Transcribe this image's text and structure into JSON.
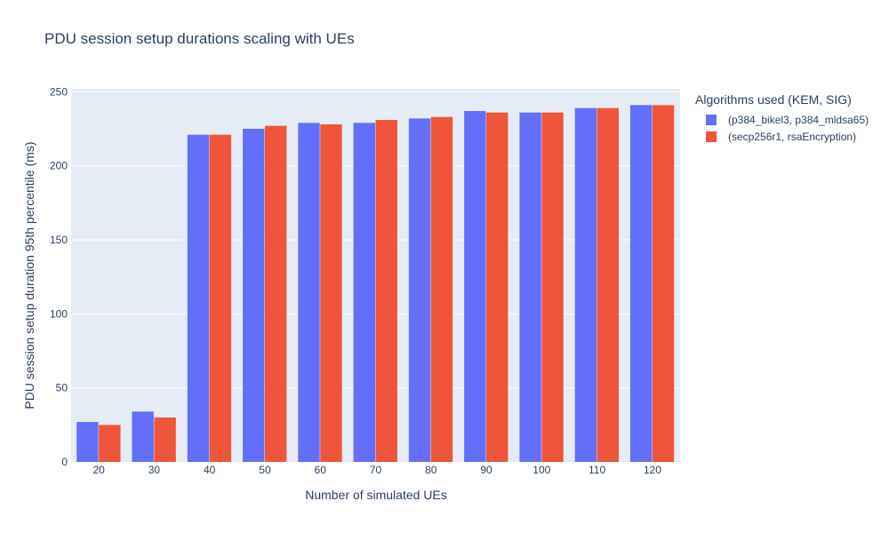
{
  "chart_data": {
    "type": "bar",
    "title": "PDU session setup durations scaling with UEs",
    "xlabel": "Number of simulated UEs",
    "ylabel": "PDU session setup duration 95th percentile (ms)",
    "ylim": [
      0,
      252
    ],
    "yticks": [
      0,
      50,
      100,
      150,
      200,
      250
    ],
    "categories": [
      "20",
      "30",
      "40",
      "50",
      "60",
      "70",
      "80",
      "90",
      "100",
      "110",
      "120"
    ],
    "legend_title": "Algorithms used (KEM, SIG)",
    "series": [
      {
        "name": "(p384_bikel3, p384_mldsa65)",
        "color": "#636efa",
        "values": [
          27,
          34,
          221,
          225,
          229,
          229,
          232,
          237,
          236,
          239,
          241
        ]
      },
      {
        "name": "(secp256r1, rsaEncryption)",
        "color": "#ef553b",
        "values": [
          25,
          30,
          221,
          227,
          228,
          231,
          233,
          236,
          236,
          239,
          241
        ]
      }
    ]
  }
}
